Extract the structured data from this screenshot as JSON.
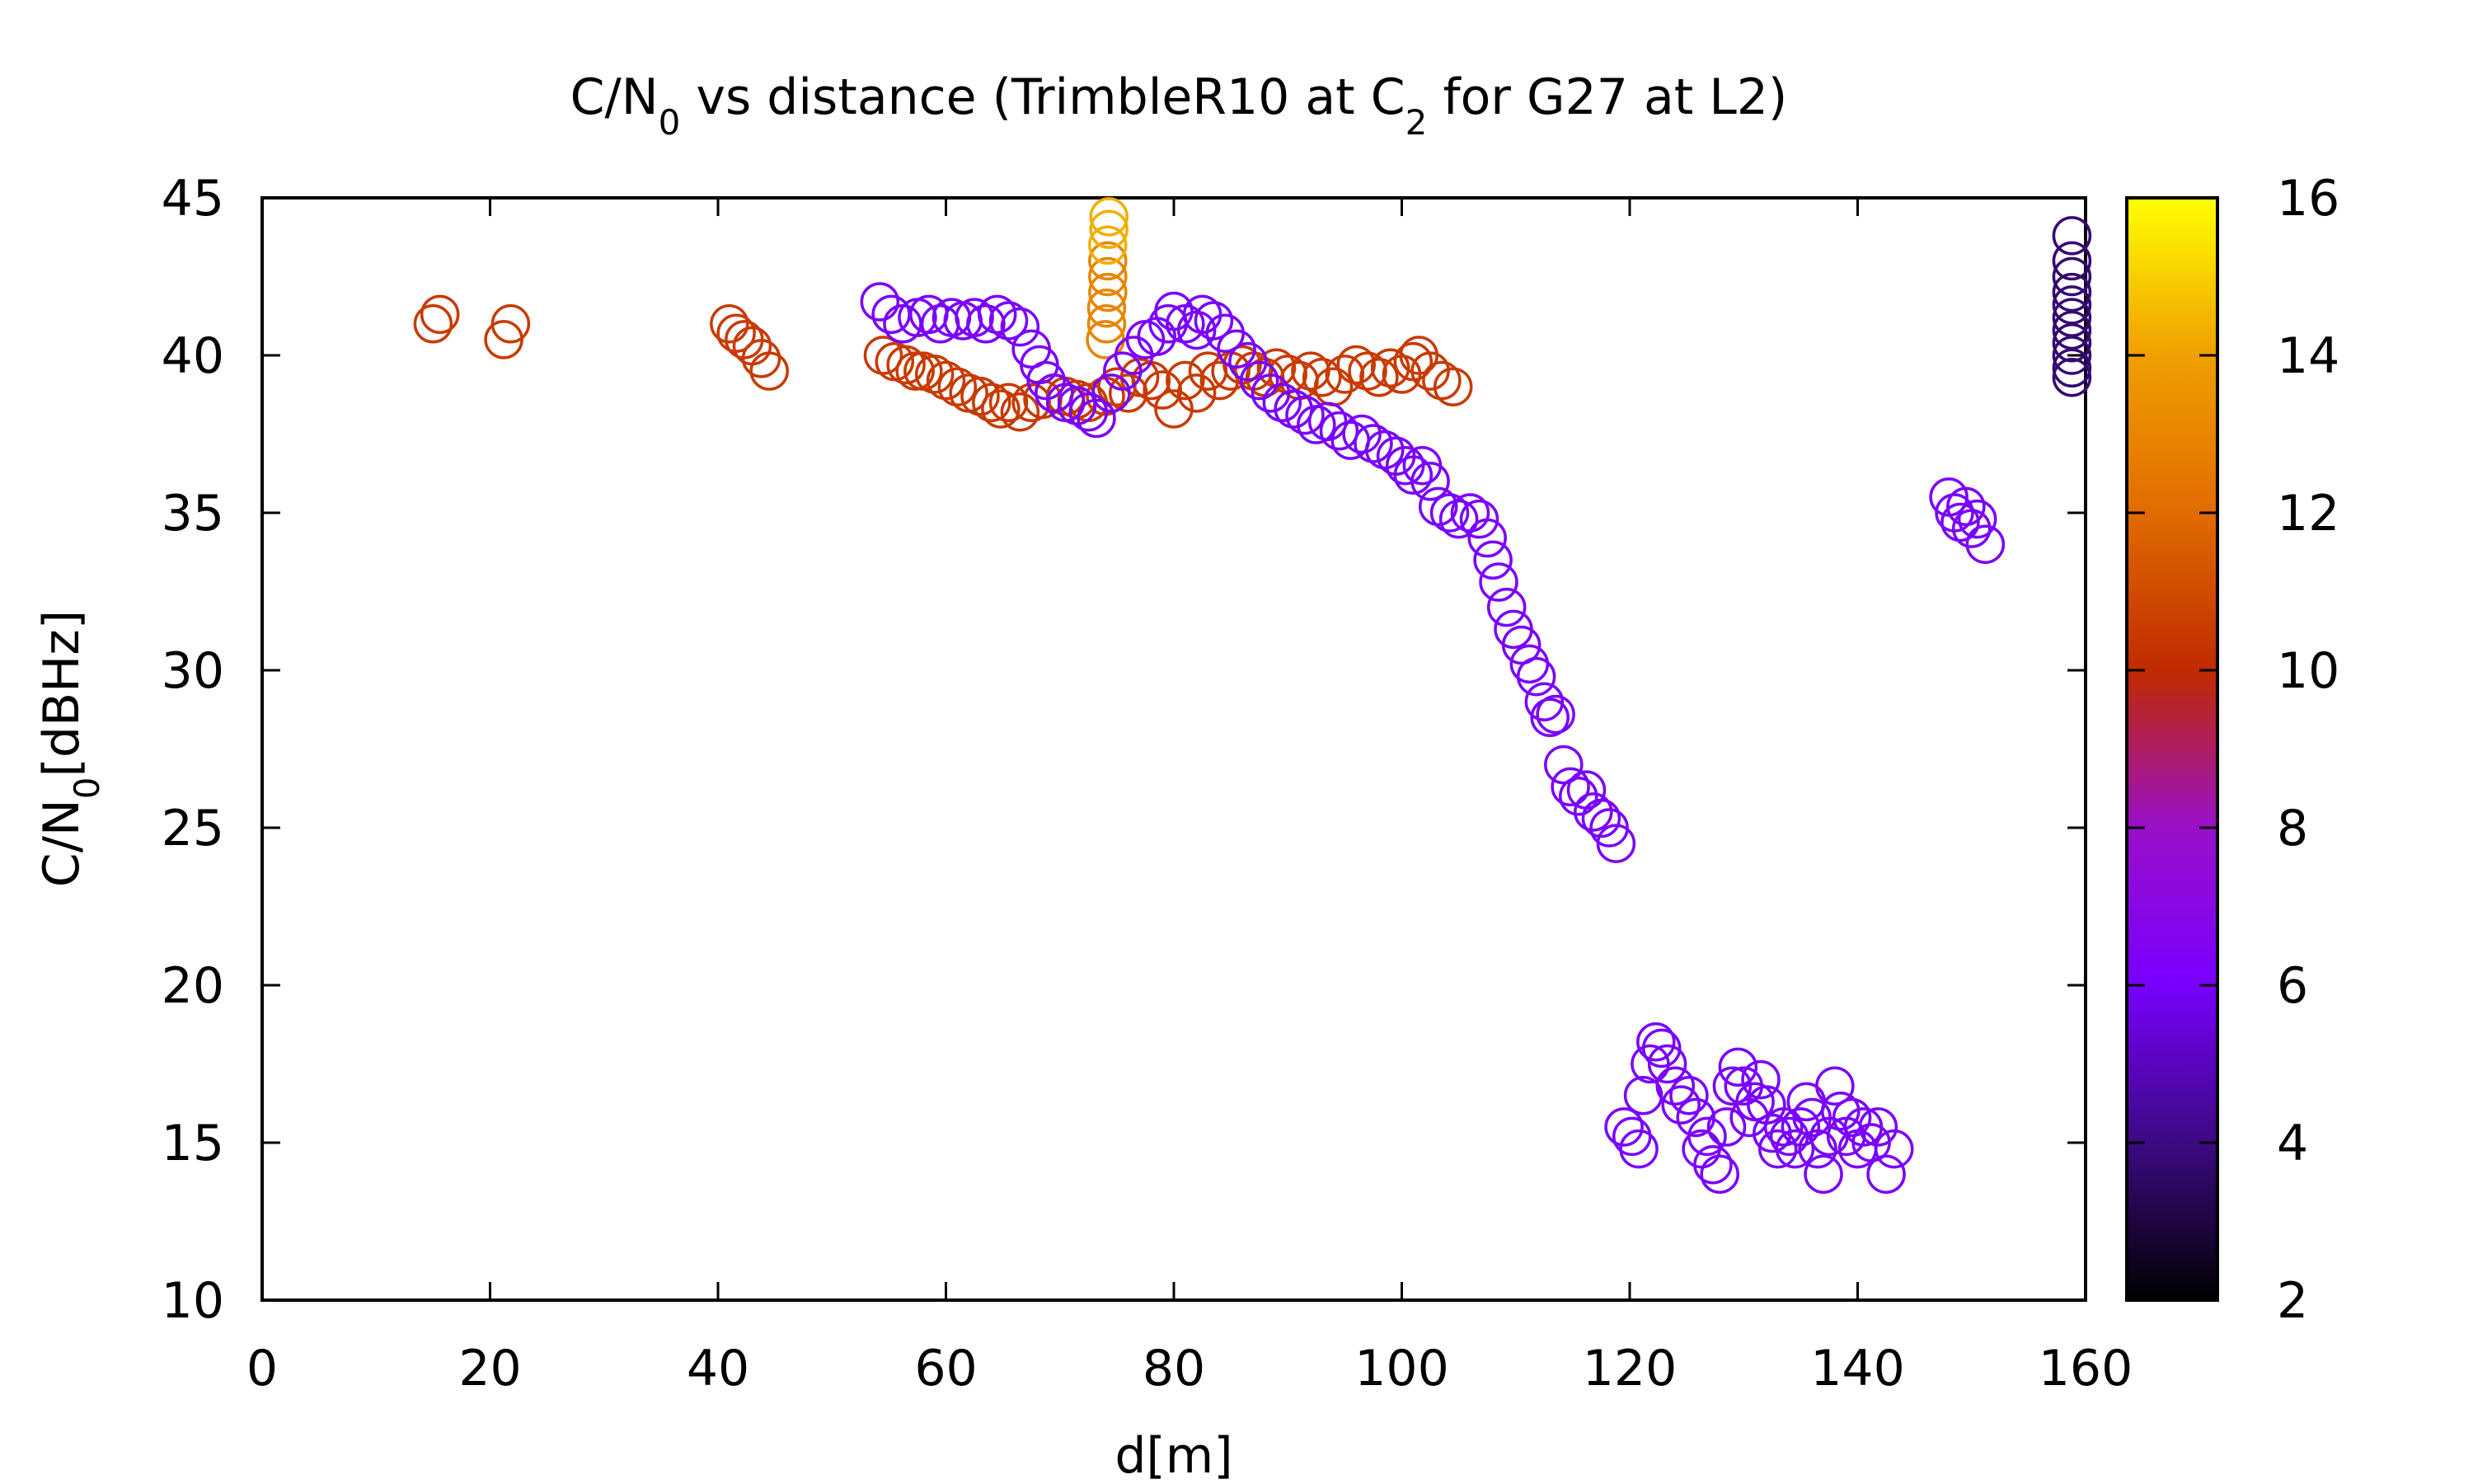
{
  "chart_data": {
    "type": "scatter",
    "title_main": "C/N",
    "title_sub": "0",
    "title_mid": " vs distance (TrimbleR10 at C",
    "title_sub2": "2",
    "title_end": " for G27 at L2)",
    "xlabel": "d[m]",
    "ylabel_main": "C/N",
    "ylabel_sub": "0",
    "ylabel_end": "[dBHz]",
    "xlim": [
      0,
      160
    ],
    "ylim": [
      10,
      45
    ],
    "xticks": [
      0,
      20,
      40,
      60,
      80,
      100,
      120,
      140,
      160
    ],
    "yticks": [
      10,
      15,
      20,
      25,
      30,
      35,
      40,
      45
    ],
    "colorbar": {
      "range": [
        2,
        16
      ],
      "ticks": [
        2,
        4,
        6,
        8,
        10,
        12,
        14,
        16
      ],
      "colormap": [
        "#000000",
        "#3b0a80",
        "#7a00ff",
        "#9a10c8",
        "#c02a00",
        "#e06a00",
        "#f0a000",
        "#ffff00"
      ]
    },
    "grid": false,
    "point_groups": [
      {
        "name": "",
        "c": 10.5,
        "points": [
          [
            15.0,
            41.0
          ],
          [
            15.6,
            41.3
          ],
          [
            21.2,
            40.5
          ],
          [
            21.8,
            41.0
          ],
          [
            41.0,
            41.0
          ],
          [
            41.6,
            40.7
          ],
          [
            42.3,
            40.5
          ],
          [
            43.0,
            40.3
          ],
          [
            43.8,
            39.9
          ],
          [
            44.5,
            39.5
          ]
        ]
      },
      {
        "name": "",
        "c": 10.5,
        "points": [
          [
            54.5,
            40.0
          ],
          [
            55.5,
            39.8
          ],
          [
            56.5,
            39.7
          ],
          [
            57.3,
            39.5
          ],
          [
            58.0,
            39.5
          ],
          [
            59.0,
            39.4
          ],
          [
            60.0,
            39.2
          ],
          [
            61.0,
            39.0
          ],
          [
            62.0,
            38.8
          ],
          [
            63.0,
            38.7
          ],
          [
            64.0,
            38.5
          ],
          [
            64.8,
            38.3
          ],
          [
            65.5,
            38.5
          ],
          [
            66.5,
            38.2
          ],
          [
            67.5,
            38.5
          ],
          [
            68.5,
            38.6
          ],
          [
            69.5,
            38.8
          ],
          [
            70.5,
            38.7
          ],
          [
            71.5,
            38.6
          ],
          [
            72.5,
            38.5
          ],
          [
            74.0,
            38.7
          ],
          [
            75.0,
            39.0
          ],
          [
            76.0,
            38.8
          ],
          [
            77.0,
            39.3
          ],
          [
            78.0,
            39.2
          ],
          [
            79.0,
            38.9
          ],
          [
            80.0,
            38.3
          ],
          [
            81.0,
            39.2
          ],
          [
            82.0,
            38.8
          ],
          [
            83.0,
            39.5
          ],
          [
            84.0,
            39.2
          ],
          [
            85.0,
            39.5
          ],
          [
            86.0,
            39.7
          ],
          [
            87.0,
            39.5
          ],
          [
            88.0,
            39.3
          ],
          [
            89.0,
            39.6
          ],
          [
            90.0,
            39.4
          ],
          [
            91.0,
            39.2
          ],
          [
            92.0,
            39.5
          ],
          [
            93.0,
            39.3
          ],
          [
            94.0,
            39.0
          ],
          [
            95.0,
            39.4
          ],
          [
            96.0,
            39.7
          ],
          [
            97.0,
            39.5
          ],
          [
            98.0,
            39.3
          ],
          [
            99.0,
            39.6
          ],
          [
            100.0,
            39.4
          ],
          [
            101.0,
            39.8
          ],
          [
            101.5,
            40.0
          ],
          [
            102.5,
            39.5
          ],
          [
            103.5,
            39.2
          ],
          [
            104.5,
            39.0
          ]
        ]
      },
      {
        "name": "",
        "c": 13.0,
        "points": [
          [
            74.0,
            40.5
          ],
          [
            74.1,
            41.0
          ],
          [
            74.1,
            41.5
          ],
          [
            74.2,
            42.0
          ],
          [
            74.2,
            42.5
          ],
          [
            74.2,
            43.0
          ]
        ]
      },
      {
        "name": "",
        "c": 14.3,
        "points": [
          [
            74.2,
            43.5
          ],
          [
            74.3,
            44.0
          ],
          [
            74.3,
            44.4
          ]
        ]
      },
      {
        "name": "",
        "c": 6.0,
        "points": [
          [
            54.2,
            41.7
          ],
          [
            55.2,
            41.3
          ],
          [
            56.2,
            41.0
          ],
          [
            57.5,
            41.2
          ],
          [
            58.5,
            41.3
          ],
          [
            59.5,
            41.0
          ],
          [
            60.5,
            41.2
          ],
          [
            61.5,
            41.1
          ],
          [
            62.5,
            41.2
          ],
          [
            63.5,
            41.0
          ],
          [
            64.5,
            41.3
          ],
          [
            65.5,
            41.1
          ],
          [
            66.5,
            40.9
          ],
          [
            67.5,
            40.2
          ],
          [
            68.2,
            39.7
          ],
          [
            68.8,
            39.2
          ],
          [
            69.5,
            38.8
          ],
          [
            70.5,
            38.5
          ],
          [
            71.5,
            38.4
          ],
          [
            72.5,
            38.2
          ],
          [
            73.2,
            38.0
          ],
          [
            74.5,
            38.8
          ],
          [
            75.5,
            39.5
          ],
          [
            76.5,
            40.0
          ],
          [
            77.5,
            40.5
          ],
          [
            78.5,
            40.6
          ],
          [
            79.5,
            41.0
          ],
          [
            80.0,
            41.4
          ],
          [
            81.0,
            41.0
          ],
          [
            82.0,
            40.8
          ],
          [
            82.5,
            41.3
          ],
          [
            83.5,
            41.1
          ],
          [
            84.5,
            40.7
          ],
          [
            85.5,
            40.2
          ],
          [
            86.5,
            39.8
          ],
          [
            87.5,
            39.2
          ],
          [
            88.5,
            38.8
          ],
          [
            89.5,
            38.5
          ],
          [
            90.5,
            38.3
          ],
          [
            91.5,
            38.1
          ],
          [
            92.5,
            37.8
          ],
          [
            93.5,
            37.9
          ],
          [
            94.5,
            37.6
          ],
          [
            95.5,
            37.3
          ],
          [
            96.5,
            37.5
          ],
          [
            97.5,
            37.2
          ],
          [
            98.5,
            37.0
          ],
          [
            99.5,
            36.8
          ],
          [
            100.3,
            36.5
          ],
          [
            101.0,
            36.2
          ],
          [
            101.8,
            36.5
          ],
          [
            102.5,
            36.0
          ],
          [
            103.2,
            35.2
          ],
          [
            104.2,
            35.0
          ],
          [
            105.0,
            34.8
          ],
          [
            106.0,
            35.0
          ],
          [
            106.8,
            34.8
          ],
          [
            107.5,
            34.2
          ],
          [
            108.0,
            33.5
          ],
          [
            108.5,
            32.8
          ],
          [
            109.2,
            32.0
          ],
          [
            109.8,
            31.3
          ],
          [
            110.5,
            30.8
          ],
          [
            111.2,
            30.2
          ],
          [
            111.8,
            29.8
          ],
          [
            112.5,
            29.0
          ],
          [
            113.0,
            28.5
          ],
          [
            113.5,
            28.6
          ],
          [
            114.2,
            27.0
          ],
          [
            114.8,
            26.3
          ],
          [
            115.5,
            26.0
          ],
          [
            116.2,
            26.2
          ],
          [
            116.8,
            25.5
          ],
          [
            117.5,
            25.3
          ],
          [
            118.2,
            25.0
          ],
          [
            118.8,
            24.5
          ],
          [
            148.0,
            35.5
          ],
          [
            148.5,
            35.0
          ],
          [
            149.0,
            34.7
          ],
          [
            149.5,
            35.2
          ],
          [
            150.0,
            34.5
          ],
          [
            150.5,
            34.8
          ],
          [
            151.2,
            34.0
          ],
          [
            119.5,
            15.5
          ],
          [
            120.2,
            15.2
          ],
          [
            120.8,
            14.8
          ],
          [
            121.2,
            16.5
          ],
          [
            121.8,
            17.5
          ],
          [
            122.3,
            18.2
          ],
          [
            122.8,
            18.0
          ],
          [
            123.3,
            17.5
          ],
          [
            124.0,
            16.8
          ],
          [
            124.5,
            16.2
          ],
          [
            125.2,
            16.5
          ],
          [
            125.8,
            15.8
          ],
          [
            126.3,
            14.8
          ],
          [
            126.8,
            15.2
          ],
          [
            127.3,
            14.3
          ],
          [
            127.9,
            14.0
          ],
          [
            128.5,
            15.5
          ],
          [
            129.0,
            16.8
          ],
          [
            129.5,
            17.4
          ],
          [
            130.0,
            16.8
          ],
          [
            130.5,
            15.8
          ],
          [
            131.0,
            16.3
          ],
          [
            131.5,
            17.0
          ],
          [
            132.0,
            16.2
          ],
          [
            132.5,
            15.3
          ],
          [
            133.0,
            14.8
          ],
          [
            133.5,
            15.5
          ],
          [
            134.0,
            15.2
          ],
          [
            134.5,
            14.8
          ],
          [
            135.0,
            15.5
          ],
          [
            135.5,
            16.3
          ],
          [
            136.0,
            15.8
          ],
          [
            136.5,
            14.8
          ],
          [
            137.0,
            14.0
          ],
          [
            137.5,
            15.2
          ],
          [
            138.0,
            16.8
          ],
          [
            138.5,
            16.0
          ],
          [
            139.0,
            15.2
          ],
          [
            139.5,
            15.8
          ],
          [
            140.0,
            14.8
          ],
          [
            140.5,
            15.5
          ],
          [
            141.2,
            15.0
          ],
          [
            141.8,
            15.5
          ],
          [
            142.5,
            14.0
          ],
          [
            143.2,
            14.8
          ]
        ]
      },
      {
        "name": "",
        "c": 3.8,
        "points": [
          [
            158.8,
            43.8
          ],
          [
            158.8,
            43.0
          ],
          [
            158.8,
            42.5
          ],
          [
            158.8,
            42.0
          ],
          [
            158.8,
            41.6
          ],
          [
            158.8,
            41.2
          ],
          [
            158.8,
            40.8
          ],
          [
            158.8,
            40.4
          ],
          [
            158.8,
            40.0
          ],
          [
            158.8,
            39.6
          ],
          [
            158.8,
            39.3
          ]
        ]
      }
    ]
  }
}
